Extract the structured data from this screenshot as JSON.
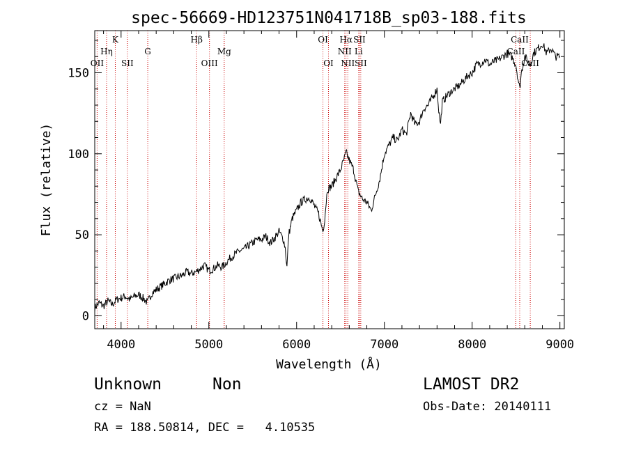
{
  "chart_data": {
    "type": "line",
    "title": "spec-56669-HD123751N041718B_sp03-188.fits",
    "xlabel": "Wavelength (Å)",
    "ylabel": "Flux (relative)",
    "xlim": [
      3700,
      9050
    ],
    "ylim": [
      -8,
      176
    ],
    "xticks": [
      4000,
      5000,
      6000,
      7000,
      8000,
      9000
    ],
    "yticks": [
      0,
      50,
      100,
      150
    ],
    "tick_labels_x": [
      "4000",
      "5000",
      "6000",
      "7000",
      "8000",
      "9000"
    ],
    "tick_labels_y": [
      "0",
      "50",
      "100",
      "150"
    ],
    "series": [
      {
        "name": "spectrum",
        "x": [
          3700,
          3750,
          3800,
          3850,
          3900,
          3950,
          4000,
          4050,
          4100,
          4150,
          4200,
          4250,
          4300,
          4350,
          4400,
          4450,
          4500,
          4550,
          4600,
          4650,
          4700,
          4750,
          4800,
          4850,
          4900,
          4950,
          5000,
          5050,
          5100,
          5150,
          5200,
          5250,
          5300,
          5350,
          5400,
          5450,
          5500,
          5550,
          5600,
          5650,
          5700,
          5750,
          5800,
          5850,
          5870,
          5890,
          5910,
          5950,
          6000,
          6050,
          6100,
          6150,
          6200,
          6250,
          6300,
          6320,
          6350,
          6400,
          6450,
          6500,
          6550,
          6563,
          6600,
          6650,
          6700,
          6750,
          6800,
          6850,
          6900,
          6950,
          7000,
          7050,
          7100,
          7150,
          7200,
          7250,
          7300,
          7350,
          7400,
          7450,
          7500,
          7550,
          7600,
          7620,
          7640,
          7660,
          7700,
          7750,
          7800,
          7850,
          7900,
          7950,
          8000,
          8050,
          8100,
          8150,
          8200,
          8250,
          8300,
          8350,
          8400,
          8450,
          8498,
          8542,
          8560,
          8600,
          8662,
          8700,
          8750,
          8800,
          8850,
          8900,
          8950,
          9000
        ],
        "values": [
          5,
          8,
          6,
          9,
          7,
          10,
          11,
          12,
          10,
          12,
          13,
          11,
          8,
          14,
          16,
          18,
          20,
          22,
          23,
          24,
          25,
          27,
          26,
          27,
          29,
          31,
          28,
          29,
          31,
          30,
          33,
          36,
          38,
          40,
          41,
          43,
          45,
          47,
          47,
          49,
          45,
          48,
          52,
          47,
          42,
          30,
          50,
          60,
          65,
          70,
          72,
          73,
          68,
          63,
          52,
          60,
          78,
          80,
          85,
          90,
          98,
          101,
          96,
          90,
          77,
          72,
          70,
          65,
          75,
          85,
          100,
          105,
          110,
          108,
          115,
          112,
          125,
          118,
          120,
          128,
          130,
          135,
          140,
          127,
          118,
          132,
          135,
          138,
          140,
          142,
          145,
          148,
          150,
          155,
          156,
          158,
          155,
          157,
          158,
          160,
          162,
          160,
          155,
          140,
          150,
          160,
          155,
          162,
          165,
          168,
          162,
          165,
          160,
          160
        ],
        "color": "#000000"
      }
    ],
    "reference_lines": {
      "color": "#cc0000",
      "lines": [
        {
          "wavelength": 3727,
          "label": "OII",
          "label_row": "low"
        },
        {
          "wavelength": 3835,
          "label": "Hη",
          "label_row": "mid"
        },
        {
          "wavelength": 3934,
          "label": "K",
          "label_row": "high"
        },
        {
          "wavelength": 4072,
          "label": "SII",
          "label_row": "low"
        },
        {
          "wavelength": 4304,
          "label": "G",
          "label_row": "mid"
        },
        {
          "wavelength": 4861,
          "label": "Hβ",
          "label_row": "high"
        },
        {
          "wavelength": 5007,
          "label": "OIII",
          "label_row": "low"
        },
        {
          "wavelength": 5175,
          "label": "Mg",
          "label_row": "mid"
        },
        {
          "wavelength": 6300,
          "label": "OI",
          "label_row": "high"
        },
        {
          "wavelength": 6363,
          "label": "OI",
          "label_row": "low"
        },
        {
          "wavelength": 6548,
          "label": "NII",
          "label_row": "mid"
        },
        {
          "wavelength": 6563,
          "label": "Hα",
          "label_row": "high"
        },
        {
          "wavelength": 6583,
          "label": "NII",
          "label_row": "low"
        },
        {
          "wavelength": 6707,
          "label": "Li",
          "label_row": "mid"
        },
        {
          "wavelength": 6716,
          "label": "SII",
          "label_row": "high"
        },
        {
          "wavelength": 6731,
          "label": "SII",
          "label_row": "low"
        },
        {
          "wavelength": 8498,
          "label": "CaII",
          "label_row": "mid"
        },
        {
          "wavelength": 8542,
          "label": "CaII",
          "label_row": "high"
        },
        {
          "wavelength": 8662,
          "label": "CaII",
          "label_row": "low"
        }
      ]
    }
  },
  "info": {
    "class": "Unknown",
    "subclass": "Non",
    "cz": "cz = NaN",
    "coords": "RA = 188.50814, DEC =   4.10535",
    "survey": "LAMOST DR2",
    "obs_date": "Obs-Date: 20140111"
  }
}
